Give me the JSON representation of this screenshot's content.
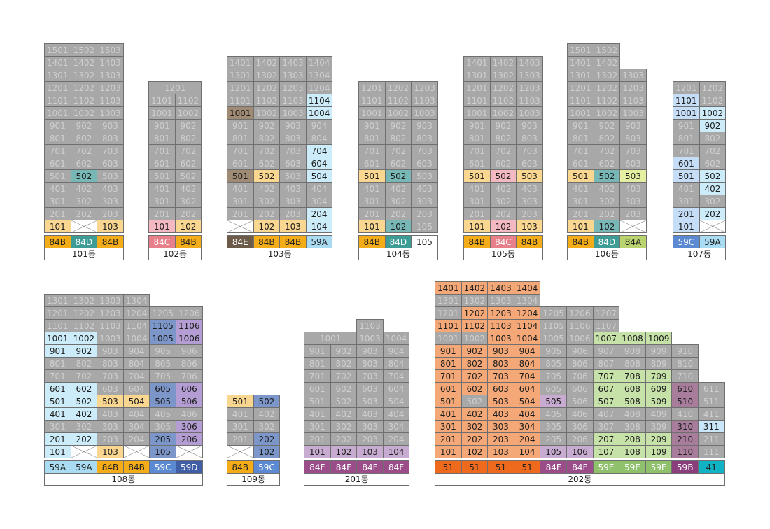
{
  "colors": {
    "s": "#a8a8a8",
    "y": "#fad790",
    "p": "#f3b8c2",
    "b": "#ccecfa",
    "B": "#c5ddf6",
    "m": "#9f8a73",
    "t": "#77b8b7",
    "P": "#b39dd3",
    "V": "#c8abd0",
    "L": "#7c96c9",
    "O": "#f5a877",
    "G": "#c7e2a9",
    "Y": "#e4f0a0",
    "R": "#a77d9b",
    "A": "#c9e7f8"
  },
  "type_colors": {
    "84B": {
      "bg": "#f4ac18",
      "fg": "#222222"
    },
    "84D": {
      "bg": "#3e9c96",
      "fg": "#ffffff"
    },
    "84C": {
      "bg": "#e7808a",
      "fg": "#ffffff"
    },
    "84E": {
      "bg": "#6d5b49",
      "fg": "#ffffff"
    },
    "59A": {
      "bg": "#a9dcf2",
      "fg": "#222222"
    },
    "105": {
      "bg": "#ffffff",
      "fg": "#222222"
    },
    "84A": {
      "bg": "#b9d46f",
      "fg": "#222222"
    },
    "59C": {
      "bg": "#5b8ad2",
      "fg": "#ffffff"
    },
    "59D": {
      "bg": "#3f5ea6",
      "fg": "#ffffff"
    },
    "84F": {
      "bg": "#9b4d8a",
      "fg": "#ffffff"
    },
    "51": {
      "bg": "#ef6a1c",
      "fg": "#222222"
    },
    "59E": {
      "bg": "#8fc16c",
      "fg": "#ffffff"
    },
    "59B": {
      "bg": "#8a3f7c",
      "fg": "#ffffff"
    },
    "41": {
      "bg": "#0fb3c3",
      "fg": "#222222"
    }
  },
  "buildings": [
    {
      "name": "101동",
      "types": [
        "84B",
        "84D",
        "84B"
      ],
      "floors": [
        [
          "1501",
          "1502",
          "1503"
        ],
        [
          "1401",
          "1402",
          "1403"
        ],
        [
          "1301",
          "1302",
          "1303"
        ],
        [
          "1201",
          "1202",
          "1203"
        ],
        [
          "1101",
          "1102",
          "1103"
        ],
        [
          "1001",
          "1002",
          "1003"
        ],
        [
          "901",
          "902",
          "903"
        ],
        [
          "801",
          "802",
          "803"
        ],
        [
          "701",
          "702",
          "703"
        ],
        [
          "601",
          "602",
          "603"
        ],
        [
          "501",
          "502|t",
          "503"
        ],
        [
          "401",
          "402",
          "403"
        ],
        [
          "301",
          "302",
          "303"
        ],
        [
          "201",
          "202",
          "203"
        ],
        [
          "101|y",
          "X",
          "103|y"
        ]
      ]
    },
    {
      "name": "102동",
      "types": [
        "84C",
        "84B"
      ],
      "floors": [
        [
          "1201"
        ],
        [
          "1101",
          "1102"
        ],
        [
          "1001",
          "1002"
        ],
        [
          "901",
          "902"
        ],
        [
          "801",
          "802"
        ],
        [
          "701",
          "702"
        ],
        [
          "601",
          "602"
        ],
        [
          "501",
          "502"
        ],
        [
          "401",
          "402"
        ],
        [
          "301",
          "302"
        ],
        [
          "201",
          "202"
        ],
        [
          "101|p",
          "102|y"
        ]
      ]
    },
    {
      "name": "103동",
      "types": [
        "84E",
        "84B",
        "84B",
        "59A"
      ],
      "floors": [
        [
          "1401",
          "1402",
          "1403",
          "1404"
        ],
        [
          "1301",
          "1302",
          "1303",
          "1304"
        ],
        [
          "1201",
          "1202",
          "1203",
          "1204"
        ],
        [
          "1101",
          "1102",
          "1103",
          "1104|b"
        ],
        [
          "1001|m",
          "1002",
          "1003",
          "1004|b"
        ],
        [
          "901",
          "902",
          "903",
          "904"
        ],
        [
          "801",
          "802",
          "803",
          "804"
        ],
        [
          "701",
          "702",
          "703",
          "704|b"
        ],
        [
          "601",
          "602",
          "603",
          "604|b"
        ],
        [
          "501|m",
          "502|y",
          "503",
          "504|b"
        ],
        [
          "401",
          "402",
          "403",
          "404"
        ],
        [
          "301",
          "302",
          "303",
          "304"
        ],
        [
          "201",
          "202",
          "203",
          "204|b"
        ],
        [
          "X",
          "102|y",
          "103|y",
          "104|b"
        ]
      ]
    },
    {
      "name": "104동",
      "types": [
        "84B",
        "84D",
        "105"
      ],
      "floors": [
        [
          "1201",
          "1202",
          "1203"
        ],
        [
          "1101",
          "1102",
          "1103"
        ],
        [
          "1001",
          "1002",
          "1003"
        ],
        [
          "901",
          "902",
          "903"
        ],
        [
          "801",
          "802",
          "803"
        ],
        [
          "701",
          "702",
          "703"
        ],
        [
          "601",
          "602",
          "603"
        ],
        [
          "501|y",
          "502|t",
          "503"
        ],
        [
          "401",
          "402",
          "403"
        ],
        [
          "301",
          "302",
          "303"
        ],
        [
          "201",
          "202",
          "203"
        ],
        [
          "101|y",
          "102|t",
          "105"
        ]
      ]
    },
    {
      "name": "105동",
      "types": [
        "84B",
        "84C",
        "84B"
      ],
      "floors": [
        [
          "1401",
          "1402",
          "1403"
        ],
        [
          "1301",
          "1302",
          "1303"
        ],
        [
          "1201",
          "1202",
          "1203"
        ],
        [
          "1101",
          "1102",
          "1103"
        ],
        [
          "1001",
          "1002",
          "1003"
        ],
        [
          "901",
          "902",
          "903"
        ],
        [
          "801",
          "802",
          "803"
        ],
        [
          "701",
          "702",
          "703"
        ],
        [
          "601",
          "602",
          "603"
        ],
        [
          "501|y",
          "502|p",
          "503|y"
        ],
        [
          "401",
          "402",
          "403"
        ],
        [
          "301",
          "302",
          "303"
        ],
        [
          "201",
          "202",
          "203"
        ],
        [
          "101|y",
          "102|p",
          "103|y"
        ]
      ]
    },
    {
      "name": "106동",
      "types": [
        "84B",
        "84D",
        "84A"
      ],
      "floors": [
        [
          "1501",
          "1502"
        ],
        [
          "1401",
          "1402"
        ],
        [
          "1301",
          "1302",
          "1303"
        ],
        [
          "1201",
          "1202",
          "1203"
        ],
        [
          "1101",
          "1102",
          "1103"
        ],
        [
          "1001",
          "1002",
          "1003"
        ],
        [
          "901",
          "902",
          "903"
        ],
        [
          "801",
          "802",
          "803"
        ],
        [
          "701",
          "702",
          "703"
        ],
        [
          "601",
          "602",
          "603"
        ],
        [
          "501|y",
          "502|t",
          "503|Y"
        ],
        [
          "401",
          "402",
          "403"
        ],
        [
          "301",
          "302",
          "303"
        ],
        [
          "201",
          "202",
          "203"
        ],
        [
          "101|y",
          "102|t",
          "X"
        ]
      ]
    },
    {
      "name": "107동",
      "types": [
        "59C",
        "59A"
      ],
      "floors": [
        [
          "1201",
          "1202"
        ],
        [
          "1101|B",
          "1102"
        ],
        [
          "1001|B",
          "1002|b"
        ],
        [
          "901",
          "902|b"
        ],
        [
          "801",
          "802"
        ],
        [
          "701",
          "702"
        ],
        [
          "601|B",
          "602"
        ],
        [
          "501|B",
          "502|b"
        ],
        [
          "401",
          "402|b"
        ],
        [
          "301",
          "302"
        ],
        [
          "201|B",
          "202|b"
        ],
        [
          "101|B",
          "X"
        ]
      ]
    },
    {
      "name": "108동",
      "types": [
        "59A",
        "59A",
        "84B",
        "84B",
        "59C",
        "59D"
      ],
      "floors": [
        [
          "1301",
          "1302",
          "1303",
          "1304"
        ],
        [
          "1201",
          "1202",
          "1203",
          "1204",
          "1205",
          "1206"
        ],
        [
          "1101",
          "1102",
          "1103",
          "1104",
          "1105|L",
          "1106|P"
        ],
        [
          "1001|b",
          "1002|b",
          "1003",
          "1004",
          "1005|L",
          "1006|P"
        ],
        [
          "901|b",
          "902|b",
          "903",
          "904",
          "905",
          "906"
        ],
        [
          "801",
          "802",
          "803",
          "804",
          "805",
          "806"
        ],
        [
          "701",
          "702",
          "703",
          "704",
          "705",
          "706"
        ],
        [
          "601|b",
          "602|b",
          "603",
          "604",
          "605|L",
          "606|P"
        ],
        [
          "501|b",
          "502|b",
          "503|y",
          "504|y",
          "505|L",
          "506|P"
        ],
        [
          "401|b",
          "402|b",
          "403",
          "404",
          "405",
          "406"
        ],
        [
          "301",
          "302",
          "303",
          "304",
          "305",
          "306|P"
        ],
        [
          "201|b",
          "202|b",
          "203",
          "204",
          "205|L",
          "206|P"
        ],
        [
          "101|b",
          "X",
          "103|y",
          "X",
          "105|L",
          "X"
        ]
      ]
    },
    {
      "name": "109동",
      "types": [
        "84B",
        "59C"
      ],
      "floors": [
        [
          "501|y",
          "502|L"
        ],
        [
          "401",
          "402"
        ],
        [
          "301",
          "302"
        ],
        [
          "201",
          "202|L"
        ],
        [
          "X",
          "102|L"
        ]
      ]
    },
    {
      "name": "201동",
      "types": [
        "84F",
        "84F",
        "84F",
        "84F"
      ],
      "floors": [
        [
          "",
          "",
          "1103"
        ],
        [
          "1001",
          "1003",
          "1004"
        ],
        [
          "901",
          "902",
          "903",
          "904"
        ],
        [
          "801",
          "802",
          "803",
          "804"
        ],
        [
          "701",
          "702",
          "703",
          "704"
        ],
        [
          "601",
          "602",
          "603",
          "604"
        ],
        [
          "501",
          "502",
          "503",
          "504"
        ],
        [
          "401",
          "402",
          "403",
          "404"
        ],
        [
          "301",
          "302",
          "303",
          "304"
        ],
        [
          "201",
          "202",
          "203",
          "204"
        ],
        [
          "101|V",
          "102|V",
          "103|V",
          "104|V"
        ]
      ]
    },
    {
      "name": "202동",
      "types": [
        "51",
        "51",
        "51",
        "51",
        "84F",
        "84F",
        "59E",
        "59E",
        "59E",
        "59B",
        "41"
      ],
      "floors": [
        [
          "1401|O",
          "1402|O",
          "1403|O",
          "1404|O"
        ],
        [
          "1301",
          "1302",
          "1303",
          "1304"
        ],
        [
          "1201",
          "1202|O",
          "1203|O",
          "1204|O",
          "1205",
          "1206",
          "1207"
        ],
        [
          "1101|O",
          "1102|O",
          "1103|O",
          "1104|O",
          "1105",
          "1106",
          "1107"
        ],
        [
          "1001",
          "1002",
          "1003|O",
          "1004|O",
          "1005",
          "1006",
          "1007|G",
          "1008|G",
          "1009|G"
        ],
        [
          "901|O",
          "902|O",
          "903|O",
          "904|O",
          "905",
          "906",
          "907",
          "908",
          "909",
          "910"
        ],
        [
          "801|O",
          "802|O",
          "803|O",
          "804|O",
          "805",
          "806",
          "807",
          "808",
          "809",
          "810"
        ],
        [
          "701|O",
          "702|O",
          "703|O",
          "704|O",
          "705",
          "706",
          "707|G",
          "708|G",
          "709|G",
          "710"
        ],
        [
          "601|O",
          "602|O",
          "603|O",
          "604|O",
          "605",
          "606",
          "607|G",
          "608|G",
          "609|G",
          "610|R",
          "611"
        ],
        [
          "501|O",
          "502",
          "503|O",
          "504|O",
          "505|V",
          "506",
          "507|G",
          "508|G",
          "509|G",
          "510|R",
          "511"
        ],
        [
          "401|O",
          "402|O",
          "403|O",
          "404|O",
          "405",
          "406",
          "407",
          "408",
          "409",
          "410",
          "411"
        ],
        [
          "301|O",
          "302|O",
          "303|O",
          "304|O",
          "305",
          "306",
          "307",
          "308",
          "309",
          "310|R",
          "311|A"
        ],
        [
          "201|O",
          "202|O",
          "203|O",
          "204|O",
          "205",
          "206",
          "207|G",
          "208|G",
          "209|G",
          "210|R",
          "211"
        ],
        [
          "101|O",
          "102|O",
          "103|O",
          "104|O",
          "105|V",
          "106|V",
          "107|G",
          "108|G",
          "109|G",
          "110|R",
          "111"
        ]
      ]
    }
  ]
}
